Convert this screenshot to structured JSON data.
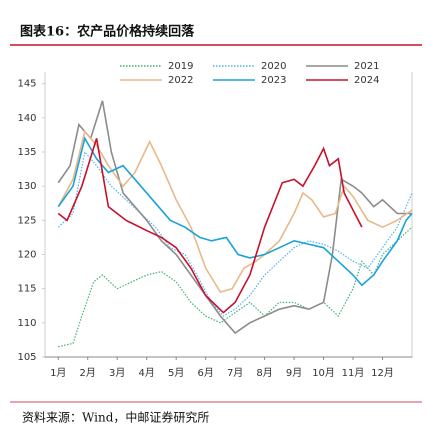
{
  "chart_data": {
    "type": "line",
    "title": "图表16：农产品价格持续回落",
    "source": "资料来源：Wind，中邮证券研究所",
    "xlim": [
      0.55,
      13
    ],
    "xticks": [
      {
        "value": 1,
        "label": "1月"
      },
      {
        "value": 2,
        "label": "2月"
      },
      {
        "value": 3,
        "label": "3月"
      },
      {
        "value": 4,
        "label": "4月"
      },
      {
        "value": 5,
        "label": "5月"
      },
      {
        "value": 6,
        "label": "6月"
      },
      {
        "value": 7,
        "label": "7月"
      },
      {
        "value": 8,
        "label": "8月"
      },
      {
        "value": 9,
        "label": "9月"
      },
      {
        "value": 10,
        "label": "10月"
      },
      {
        "value": 11,
        "label": "11月"
      },
      {
        "value": 12,
        "label": "12月"
      }
    ],
    "ylim": [
      105,
      147
    ],
    "yticks": [
      105,
      110,
      115,
      120,
      125,
      130,
      135,
      140,
      145
    ],
    "series": [
      {
        "name": "2019",
        "color": "#3cb371",
        "style": "dotted",
        "x": [
          1,
          1.5,
          1.8,
          2.2,
          2.5,
          3,
          3.5,
          4,
          4.5,
          5,
          5.5,
          6,
          6.5,
          7,
          7.5,
          8,
          8.5,
          9,
          9.5,
          10,
          10.5,
          11,
          11.3,
          11.7,
          12,
          12.5,
          13
        ],
        "values": [
          106.5,
          107,
          111,
          116,
          117,
          115,
          116,
          117,
          117.5,
          116,
          113,
          111,
          110,
          111.5,
          113,
          111,
          113,
          113,
          112,
          113,
          111,
          115,
          119,
          117,
          120,
          122,
          124
        ]
      },
      {
        "name": "2020",
        "color": "#4fb3e8",
        "style": "dotted",
        "x": [
          1,
          1.5,
          1.9,
          2.3,
          2.8,
          3.3,
          3.8,
          4.3,
          4.8,
          5.3,
          5.7,
          6.2,
          6.6,
          7,
          7.5,
          8,
          8.5,
          9,
          9.5,
          10,
          10.5,
          11,
          11.5,
          12,
          12.5,
          13
        ],
        "values": [
          124,
          126,
          135,
          133,
          130,
          128,
          126,
          124,
          121,
          120,
          117,
          113,
          111,
          112,
          114,
          117,
          119,
          121,
          122,
          121.5,
          120.5,
          119,
          118,
          121,
          124,
          129
        ]
      },
      {
        "name": "2021",
        "color": "#8c8c8c",
        "style": "solid",
        "x": [
          1,
          1.4,
          1.7,
          2.1,
          2.5,
          2.8,
          3.2,
          3.6,
          4,
          4.5,
          5,
          5.5,
          6,
          6.5,
          7,
          7.5,
          8,
          8.5,
          9,
          9.5,
          10,
          10.3,
          10.6,
          11,
          11.3,
          11.7,
          12,
          12.5,
          13
        ],
        "values": [
          130.5,
          133,
          139,
          137,
          142.5,
          135,
          129,
          127,
          125,
          122,
          120,
          117,
          114,
          111,
          108.5,
          110,
          111,
          112,
          112.5,
          112,
          113,
          120,
          131,
          130,
          129,
          127,
          128,
          126,
          126
        ]
      },
      {
        "name": "2022",
        "color": "#e8b98a",
        "style": "solid",
        "x": [
          1,
          1.5,
          1.9,
          2.3,
          2.7,
          3.2,
          3.6,
          4.1,
          4.5,
          5,
          5.5,
          6,
          6.5,
          6.9,
          7.3,
          7.7,
          8,
          8.5,
          9,
          9.3,
          9.6,
          10,
          10.4,
          10.7,
          11,
          11.5,
          12,
          12.5,
          13
        ],
        "values": [
          127,
          131,
          138,
          136,
          133,
          130,
          132,
          136.5,
          133,
          128,
          124,
          118,
          114.5,
          115,
          118,
          119,
          120,
          122,
          126,
          129,
          128,
          125.5,
          126,
          130,
          128.5,
          125,
          124,
          125,
          126.5
        ]
      },
      {
        "name": "2023",
        "color": "#1aa3d9",
        "style": "solid",
        "x": [
          1,
          1.5,
          1.9,
          2.3,
          2.7,
          3.2,
          3.6,
          4.2,
          4.8,
          5.3,
          5.8,
          6.2,
          6.7,
          7.1,
          7.5,
          8,
          8.5,
          9,
          9.5,
          10,
          10.5,
          11,
          11.3,
          11.7,
          12,
          12.5,
          12.8,
          13
        ],
        "values": [
          127,
          130,
          137,
          134,
          132,
          133,
          131,
          128,
          125,
          124,
          122.5,
          122,
          122.5,
          120,
          119.5,
          120,
          121,
          122,
          121.5,
          121,
          119,
          117,
          115.5,
          117,
          119,
          122,
          125,
          126
        ]
      },
      {
        "name": "2024",
        "color": "#c8102e",
        "style": "solid",
        "x": [
          1,
          1.3,
          1.8,
          2.3,
          2.7,
          3.3,
          4,
          4.5,
          5,
          5.5,
          6,
          6.6,
          7,
          7.5,
          8,
          8.6,
          9,
          9.3,
          9.7,
          10,
          10.2,
          10.5,
          10.7,
          11,
          11.3
        ],
        "values": [
          126,
          125,
          130,
          137,
          127,
          125,
          123.5,
          122.5,
          121,
          118,
          114,
          111.5,
          113,
          117,
          124,
          130.5,
          131,
          130,
          133,
          135.5,
          133,
          134,
          129,
          126.5,
          124
        ]
      }
    ]
  }
}
